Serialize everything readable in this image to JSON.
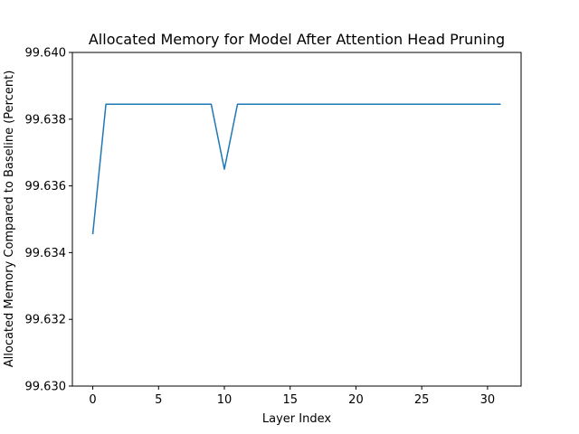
{
  "chart_data": {
    "type": "line",
    "title": "Allocated Memory for Model After Attention Head Pruning",
    "xlabel": "Layer Index",
    "ylabel": "Allocated Memory Compared to Baseline (Percent)",
    "xlim": [
      -1.55,
      32.55
    ],
    "ylim": [
      99.63,
      99.64
    ],
    "xticks": [
      0,
      5,
      10,
      15,
      20,
      25,
      30
    ],
    "yticks": [
      99.63,
      99.632,
      99.634,
      99.636,
      99.638,
      99.64
    ],
    "ytick_labels": [
      "99.630",
      "99.632",
      "99.634",
      "99.636",
      "99.638",
      "99.640"
    ],
    "grid": false,
    "series": [
      {
        "color": "#1f77b4",
        "x": [
          0,
          1,
          2,
          3,
          4,
          5,
          6,
          7,
          8,
          9,
          10,
          11,
          12,
          13,
          14,
          15,
          16,
          17,
          18,
          19,
          20,
          21,
          22,
          23,
          24,
          25,
          26,
          27,
          28,
          29,
          30,
          31
        ],
        "y": [
          99.63455,
          99.63845,
          99.63845,
          99.63845,
          99.63845,
          99.63845,
          99.63845,
          99.63845,
          99.63845,
          99.63845,
          99.6365,
          99.63845,
          99.63845,
          99.63845,
          99.63845,
          99.63845,
          99.63845,
          99.63845,
          99.63845,
          99.63845,
          99.63845,
          99.63845,
          99.63845,
          99.63845,
          99.63845,
          99.63845,
          99.63845,
          99.63845,
          99.63845,
          99.63845,
          99.63845,
          99.63845
        ]
      }
    ]
  }
}
